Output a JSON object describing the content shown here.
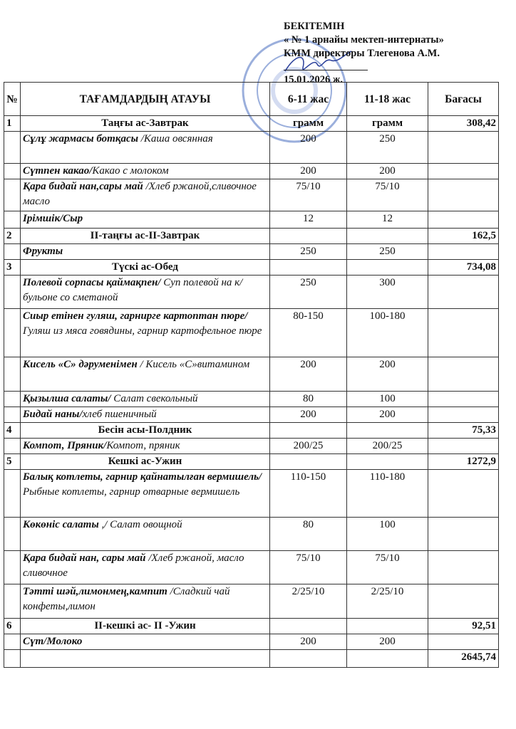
{
  "approval": {
    "title": "БЕКІТЕМІН",
    "line1": "« № 1 арнайы мектеп-интернаты»",
    "line2": "КММ директоры  Тлегенова А.М.",
    "date": "15.01.2026 ж."
  },
  "table": {
    "headers": {
      "no": "№",
      "name": "ТАҒАМДАРДЫҢ  АТАУЫ",
      "age1": "6-11 жас",
      "age2": "11-18 жас",
      "price": "Бағасы"
    },
    "rows": [
      {
        "type": "meal",
        "no": "1",
        "title": "Таңғы ас-Завтрак",
        "a": "грамм",
        "b": "грамм",
        "price": "308,42"
      },
      {
        "type": "dish",
        "kz": "Сұлұ  жармасы ботқасы",
        "ru": " /Каша овсянная",
        "a": "200",
        "b": "250",
        "h": 44
      },
      {
        "type": "dish",
        "kz": "Сүтпен какао/",
        "ru": "Какао с молоком",
        "a": "200",
        "b": "200",
        "h": 21
      },
      {
        "type": "dish",
        "kz": "Қара бидай нан,сары май",
        "ru": " /Хлеб ржаной,сливочное масло",
        "a": "75/10",
        "b": "75/10",
        "h": 44
      },
      {
        "type": "dish",
        "kz": "Ірімшік/Сыр",
        "ru": "",
        "a": "12",
        "b": "12",
        "h": 23
      },
      {
        "type": "meal",
        "no": "2",
        "title": "II-таңғы ас-II-Завтрак",
        "a": "",
        "b": "",
        "price": "162,5"
      },
      {
        "type": "dish",
        "kz": "Фрукты",
        "ru": "",
        "a": "250",
        "b": "250",
        "h": 21
      },
      {
        "type": "meal",
        "no": "3",
        "title": "Түскі ас-Обед",
        "a": "",
        "b": "",
        "price": "734,08"
      },
      {
        "type": "dish",
        "kz": "Полевой сорпасы қаймақпен/",
        "ru": " Суп полевой на к/бульоне со сметаной",
        "a": "250",
        "b": "300",
        "h": 46
      },
      {
        "type": "dish",
        "kz": "Сиыр етінен гуляш, гарнирге картоптан пюре/",
        "ru": "Гуляш из мяса говядины, гарнир картофельное пюре",
        "a": "80-150",
        "b": "100-180",
        "h": 67
      },
      {
        "type": "dish",
        "kz": "Кисель «С» дәруменімен",
        "ru": " / Кисель «С»витамином",
        "a": "200",
        "b": "200",
        "h": 47
      },
      {
        "type": "dish",
        "kz": "Қызылша салаты/",
        "ru": " Салат свекольный",
        "a": "80",
        "b": "100",
        "h": 21
      },
      {
        "type": "dish",
        "kz": "Бидай наны/",
        "ru": "хлеб пшеничный",
        "a": "200",
        "b": "200",
        "h": 21
      },
      {
        "type": "meal",
        "no": "4",
        "title": "Бесін асы-Полдник",
        "a": "",
        "b": "",
        "price": "75,33"
      },
      {
        "type": "dish",
        "kz": "Компот, Пряник/",
        "ru": "Компот, пряник",
        "a": "200/25",
        "b": "200/25",
        "h": 21
      },
      {
        "type": "meal",
        "no": "5",
        "title": "Кешкі ас-Ужин",
        "a": "",
        "b": "",
        "price": "1272,9"
      },
      {
        "type": "dish",
        "kz": "Балық котлеты, гарнир қайнатылған вермишель/",
        "ru": " Рыбные котлеты, гарнир отварные вермишель",
        "a": "110-150",
        "b": "110-180",
        "h": 66
      },
      {
        "type": "dish",
        "kz": "Көкөніс салаты",
        "ru": " ,/ Салат овощной",
        "a": "80",
        "b": "100",
        "h": 46
      },
      {
        "type": "dish",
        "kz": "Қара  бидай нан, сары май",
        "ru": " /Хлеб ржаной, масло сливочное",
        "a": "75/10",
        "b": "75/10",
        "h": 46
      },
      {
        "type": "dish",
        "kz": "Тәтті шәй,лимонмең,кампит",
        "ru": " /Сладкий чай конфеты,лимон",
        "a": "2/25/10",
        "b": "2/25/10",
        "h": 47
      },
      {
        "type": "meal",
        "no": "6",
        "title": "II-кешкі ас- II -Ужин",
        "a": "",
        "b": "",
        "price": "92,51"
      },
      {
        "type": "dish",
        "kz": "Сүт/Молоко",
        "ru": "",
        "a": "200",
        "b": "200",
        "h": 21
      }
    ],
    "total": "2645,74"
  }
}
